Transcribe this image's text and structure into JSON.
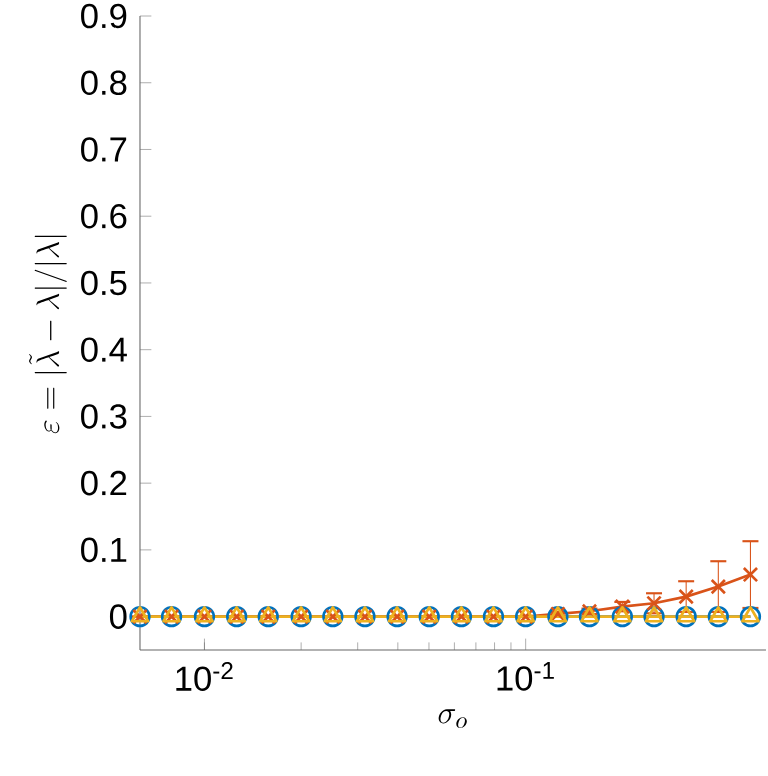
{
  "chart_data": {
    "type": "line",
    "xlabel": "\\sigma_o",
    "ylabel": "\\varepsilon = |\\tilde{\\lambda}-\\lambda|/|\\lambda|",
    "x": [
      0.0063,
      0.0079,
      0.01,
      0.0126,
      0.0158,
      0.02,
      0.0251,
      0.0316,
      0.0398,
      0.0501,
      0.0631,
      0.0794,
      0.1,
      0.126,
      0.158,
      0.2,
      0.251,
      0.316,
      0.398,
      0.501
    ],
    "series": [
      {
        "color": "#0072bd",
        "marker": "circle",
        "values": [
          0,
          0,
          0,
          0,
          0,
          0,
          0,
          0,
          0,
          0,
          0,
          0,
          0,
          0,
          0,
          0,
          0,
          0,
          0,
          0
        ]
      },
      {
        "color": "#d95319",
        "marker": "cross",
        "values": [
          0,
          0,
          0,
          0,
          0,
          0,
          0,
          0,
          0,
          0,
          0,
          0,
          0,
          0.004,
          0.008,
          0.015,
          0.02,
          0.03,
          0.045,
          0.063
        ],
        "errors": [
          null,
          null,
          null,
          null,
          null,
          null,
          null,
          null,
          null,
          null,
          null,
          null,
          null,
          0.003,
          0.004,
          0.007,
          0.015,
          0.023,
          0.038,
          0.05
        ]
      },
      {
        "color": "#edb120",
        "marker": "triangle",
        "values": [
          0,
          0,
          0,
          0,
          0,
          0,
          0,
          0,
          0,
          0,
          0,
          0,
          0,
          0,
          0,
          0,
          0,
          0,
          0,
          0
        ]
      }
    ],
    "log": "x",
    "line_style": "solid",
    "xlim": [
      0.0063,
      0.56
    ],
    "ylim": [
      -0.05,
      0.9
    ],
    "xticks": [
      {
        "value": 0.01,
        "label": "10$^{-2}$"
      },
      {
        "value": 0.1,
        "label": "10$^{-1}$"
      }
    ],
    "yticks": [
      0,
      0.1,
      0.2,
      0.3,
      0.4,
      0.5,
      0.6,
      0.7,
      0.8,
      0.9
    ]
  }
}
